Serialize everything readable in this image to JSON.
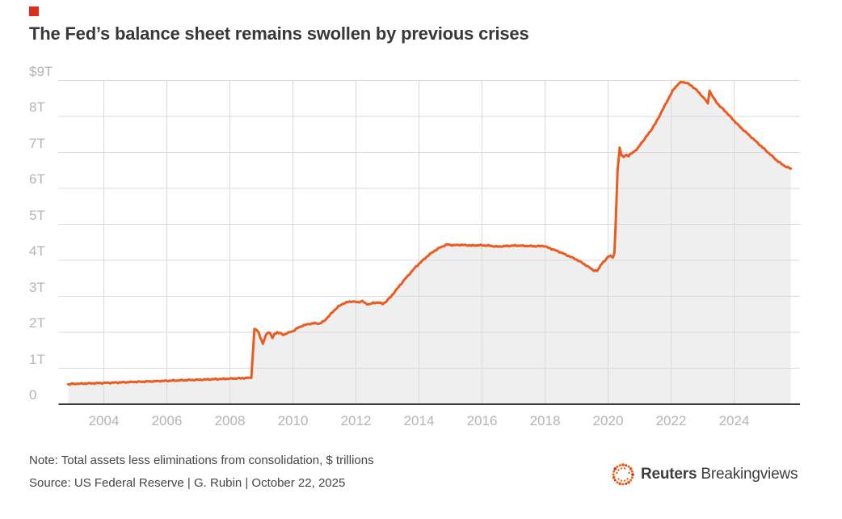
{
  "page": {
    "background": "#ffffff"
  },
  "kicker": {
    "color": "#da2f1f"
  },
  "header": {
    "title": "The Fed’s balance sheet remains swollen by previous crises"
  },
  "footer": {
    "note": "Note: Total assets less eliminations from consolidation, $ trillions",
    "source": "Source: US Federal Reserve | G. Rubin | October 22, 2025"
  },
  "branding": {
    "logo_bold": "Reuters",
    "logo_light": "Breakingviews",
    "logo_icon": "reuters-dotted-circle",
    "text_color": "#3d3d3d",
    "icon_orange": "#ee6119",
    "icon_dark_orange": "#c8401a"
  },
  "chart_data": {
    "type": "area",
    "title": "The Fed’s balance sheet remains swollen by previous crises",
    "xlabel": "",
    "ylabel": "$ trillions",
    "xlim": [
      2002.8,
      2026.1
    ],
    "ylim": [
      0,
      9
    ],
    "grid": true,
    "line_color": "#ed5a1e",
    "fill_color": "#efefef",
    "grid_color": "#d9d9d9",
    "baseline_color": "#3b3b3b",
    "tick_color": "#b4b4b4",
    "y_ticks": [
      {
        "label": "$9T",
        "value": 9
      },
      {
        "label": "8T",
        "value": 8
      },
      {
        "label": "7T",
        "value": 7
      },
      {
        "label": "6T",
        "value": 6
      },
      {
        "label": "5T",
        "value": 5
      },
      {
        "label": "4T",
        "value": 4
      },
      {
        "label": "3T",
        "value": 3
      },
      {
        "label": "2T",
        "value": 2
      },
      {
        "label": "1T",
        "value": 1
      },
      {
        "label": "0",
        "value": 0
      }
    ],
    "x_ticks": [
      {
        "label": "2004",
        "value": 2004
      },
      {
        "label": "2006",
        "value": 2006
      },
      {
        "label": "2008",
        "value": 2008
      },
      {
        "label": "2010",
        "value": 2010
      },
      {
        "label": "2012",
        "value": 2012
      },
      {
        "label": "2014",
        "value": 2014
      },
      {
        "label": "2016",
        "value": 2016
      },
      {
        "label": "2018",
        "value": 2018
      },
      {
        "label": "2020",
        "value": 2020
      },
      {
        "label": "2022",
        "value": 2022
      },
      {
        "label": "2024",
        "value": 2024
      }
    ],
    "series": [
      {
        "name": "Fed total assets ($ trillions)",
        "points": [
          [
            2002.87,
            0.56
          ],
          [
            2003.2,
            0.57
          ],
          [
            2003.6,
            0.58
          ],
          [
            2004.0,
            0.59
          ],
          [
            2004.5,
            0.605
          ],
          [
            2005.0,
            0.62
          ],
          [
            2005.5,
            0.635
          ],
          [
            2006.0,
            0.65
          ],
          [
            2006.5,
            0.665
          ],
          [
            2007.0,
            0.68
          ],
          [
            2007.5,
            0.695
          ],
          [
            2008.0,
            0.71
          ],
          [
            2008.3,
            0.72
          ],
          [
            2008.55,
            0.73
          ],
          [
            2008.68,
            0.74
          ],
          [
            2008.72,
            1.3
          ],
          [
            2008.78,
            2.1
          ],
          [
            2008.85,
            2.06
          ],
          [
            2008.92,
            1.98
          ],
          [
            2009.0,
            1.78
          ],
          [
            2009.05,
            1.68
          ],
          [
            2009.12,
            1.88
          ],
          [
            2009.2,
            2.0
          ],
          [
            2009.28,
            1.98
          ],
          [
            2009.35,
            1.83
          ],
          [
            2009.42,
            1.95
          ],
          [
            2009.5,
            2.0
          ],
          [
            2009.6,
            1.97
          ],
          [
            2009.7,
            1.93
          ],
          [
            2009.8,
            1.97
          ],
          [
            2009.9,
            2.0
          ],
          [
            2010.0,
            2.03
          ],
          [
            2010.15,
            2.12
          ],
          [
            2010.3,
            2.18
          ],
          [
            2010.5,
            2.23
          ],
          [
            2010.7,
            2.25
          ],
          [
            2010.85,
            2.24
          ],
          [
            2011.0,
            2.32
          ],
          [
            2011.15,
            2.46
          ],
          [
            2011.3,
            2.6
          ],
          [
            2011.45,
            2.72
          ],
          [
            2011.6,
            2.8
          ],
          [
            2011.75,
            2.84
          ],
          [
            2011.9,
            2.86
          ],
          [
            2012.05,
            2.83
          ],
          [
            2012.2,
            2.87
          ],
          [
            2012.3,
            2.8
          ],
          [
            2012.4,
            2.78
          ],
          [
            2012.55,
            2.81
          ],
          [
            2012.7,
            2.83
          ],
          [
            2012.85,
            2.79
          ],
          [
            2012.95,
            2.85
          ],
          [
            2013.1,
            2.98
          ],
          [
            2013.3,
            3.2
          ],
          [
            2013.5,
            3.42
          ],
          [
            2013.7,
            3.62
          ],
          [
            2013.9,
            3.82
          ],
          [
            2014.1,
            3.98
          ],
          [
            2014.3,
            4.14
          ],
          [
            2014.5,
            4.27
          ],
          [
            2014.7,
            4.37
          ],
          [
            2014.9,
            4.44
          ],
          [
            2015.1,
            4.42
          ],
          [
            2015.3,
            4.43
          ],
          [
            2015.5,
            4.42
          ],
          [
            2015.7,
            4.41
          ],
          [
            2015.9,
            4.42
          ],
          [
            2016.2,
            4.41
          ],
          [
            2016.5,
            4.38
          ],
          [
            2016.8,
            4.4
          ],
          [
            2017.1,
            4.41
          ],
          [
            2017.4,
            4.4
          ],
          [
            2017.7,
            4.39
          ],
          [
            2017.95,
            4.4
          ],
          [
            2018.2,
            4.32
          ],
          [
            2018.5,
            4.22
          ],
          [
            2018.8,
            4.1
          ],
          [
            2019.0,
            4.02
          ],
          [
            2019.2,
            3.92
          ],
          [
            2019.4,
            3.8
          ],
          [
            2019.55,
            3.72
          ],
          [
            2019.65,
            3.7
          ],
          [
            2019.72,
            3.8
          ],
          [
            2019.8,
            3.92
          ],
          [
            2019.9,
            3.98
          ],
          [
            2020.0,
            4.1
          ],
          [
            2020.08,
            4.14
          ],
          [
            2020.15,
            4.08
          ],
          [
            2020.2,
            4.18
          ],
          [
            2020.24,
            5.0
          ],
          [
            2020.3,
            6.5
          ],
          [
            2020.37,
            7.13
          ],
          [
            2020.42,
            6.92
          ],
          [
            2020.5,
            6.87
          ],
          [
            2020.58,
            6.95
          ],
          [
            2020.65,
            6.9
          ],
          [
            2020.75,
            6.98
          ],
          [
            2020.85,
            7.04
          ],
          [
            2020.95,
            7.12
          ],
          [
            2021.05,
            7.25
          ],
          [
            2021.2,
            7.42
          ],
          [
            2021.35,
            7.6
          ],
          [
            2021.5,
            7.8
          ],
          [
            2021.65,
            8.05
          ],
          [
            2021.8,
            8.3
          ],
          [
            2021.95,
            8.55
          ],
          [
            2022.1,
            8.78
          ],
          [
            2022.25,
            8.92
          ],
          [
            2022.35,
            8.96
          ],
          [
            2022.5,
            8.93
          ],
          [
            2022.65,
            8.85
          ],
          [
            2022.8,
            8.74
          ],
          [
            2022.95,
            8.6
          ],
          [
            2023.1,
            8.45
          ],
          [
            2023.17,
            8.36
          ],
          [
            2023.22,
            8.72
          ],
          [
            2023.3,
            8.58
          ],
          [
            2023.4,
            8.44
          ],
          [
            2023.55,
            8.28
          ],
          [
            2023.7,
            8.16
          ],
          [
            2023.85,
            8.02
          ],
          [
            2024.0,
            7.88
          ],
          [
            2024.15,
            7.74
          ],
          [
            2024.3,
            7.62
          ],
          [
            2024.45,
            7.5
          ],
          [
            2024.6,
            7.38
          ],
          [
            2024.75,
            7.26
          ],
          [
            2024.9,
            7.14
          ],
          [
            2025.05,
            7.02
          ],
          [
            2025.2,
            6.9
          ],
          [
            2025.35,
            6.78
          ],
          [
            2025.5,
            6.68
          ],
          [
            2025.65,
            6.6
          ],
          [
            2025.8,
            6.55
          ]
        ]
      }
    ]
  }
}
